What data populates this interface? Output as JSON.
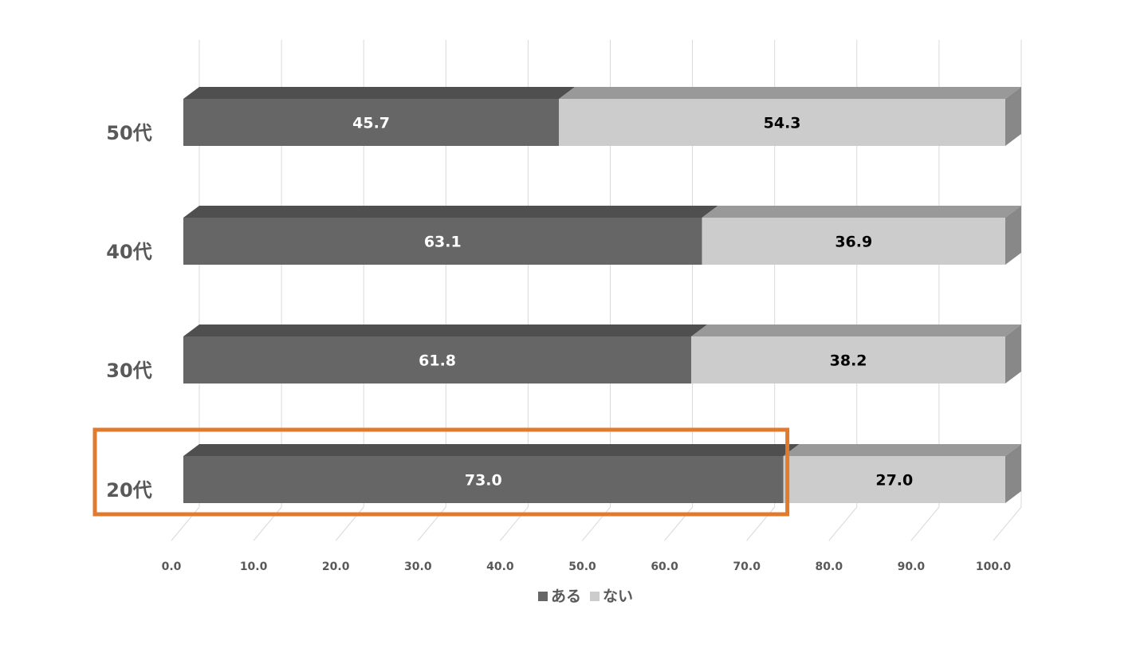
{
  "chart_data": {
    "type": "bar",
    "orientation": "horizontal",
    "stacked": true,
    "style_3d": true,
    "categories": [
      "50代",
      "40代",
      "30代",
      "20代"
    ],
    "series": [
      {
        "name": "ある",
        "values": [
          45.7,
          63.1,
          61.8,
          73.0
        ],
        "labels": [
          "45.7",
          "63.1",
          "61.8",
          "73.0"
        ],
        "color": "#666666",
        "top_color": "#4f4f4f",
        "label_color": "#ffffff"
      },
      {
        "name": "ない",
        "values": [
          54.3,
          36.9,
          38.2,
          27.0
        ],
        "labels": [
          "54.3",
          "36.9",
          "38.2",
          "27.0"
        ],
        "color": "#cccccc",
        "top_color": "#999999",
        "label_color": "#000000",
        "side_color": "#888888"
      }
    ],
    "x_ticks": [
      "0.0",
      "10.0",
      "20.0",
      "30.0",
      "40.0",
      "50.0",
      "60.0",
      "70.0",
      "80.0",
      "90.0",
      "100.0"
    ],
    "xlim": [
      0,
      100
    ],
    "grid": true,
    "legend": "bottom",
    "highlight": {
      "category": "20代",
      "color": "#e07b2e"
    }
  }
}
